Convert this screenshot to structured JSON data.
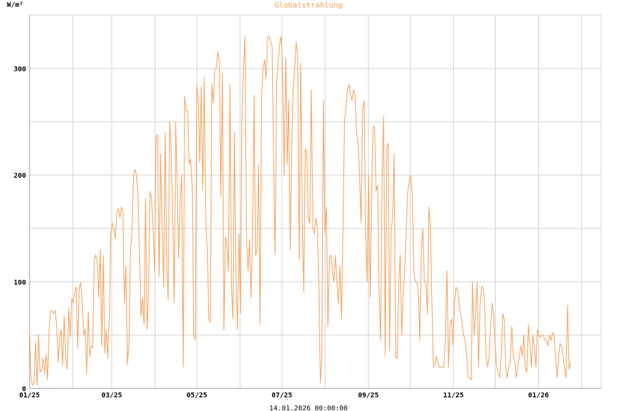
{
  "chart_data": {
    "type": "line",
    "title": "Globalstrahlung",
    "ylabel": "W/m²",
    "xlabel": "14.01.2026 00:00:00",
    "grid": true,
    "ylim": [
      0,
      350
    ],
    "yticks": [
      0,
      100,
      200,
      300
    ],
    "ytick_labels": [
      "0",
      "100",
      "200",
      "300"
    ],
    "xlim": [
      "2025-01-01",
      "2026-02-15"
    ],
    "xticks": [
      "2025-01-01",
      "2025-03-01",
      "2025-05-01",
      "2025-07-01",
      "2025-09-01",
      "2025-11-01",
      "2026-01-01"
    ],
    "xtick_labels": [
      "01/25",
      "03/25",
      "05/25",
      "07/25",
      "09/25",
      "11/25",
      "01/26"
    ],
    "x_minor_grid": [
      "2025-02-01",
      "2025-04-01",
      "2025-06-01",
      "2025-08-01",
      "2025-10-01",
      "2025-12-01",
      "2026-02-01"
    ],
    "series_color": "#f4a460",
    "title_color": "#f0a050",
    "series": [
      {
        "x_start": "2025-01-01",
        "x_end": "2026-01-24",
        "values": [
          57,
          8,
          3,
          5,
          44,
          3,
          50,
          15,
          17,
          28,
          14,
          32,
          8,
          55,
          72,
          73,
          70,
          73,
          60,
          25,
          47,
          55,
          22,
          68,
          30,
          18,
          75,
          48,
          84,
          80,
          90,
          95,
          38,
          94,
          99,
          82,
          50,
          55,
          14,
          72,
          30,
          40,
          38,
          120,
          125,
          118,
          85,
          130,
          40,
          125,
          33,
          55,
          28,
          68,
          145,
          155,
          150,
          140,
          165,
          168,
          160,
          170,
          165,
          80,
          115,
          22,
          42,
          130,
          145,
          200,
          205,
          200,
          180,
          125,
          68,
          85,
          60,
          178,
          55,
          90,
          185,
          178,
          150,
          110,
          236,
          238,
          105,
          220,
          150,
          95,
          240,
          118,
          83,
          250,
          225,
          160,
          80,
          250,
          190,
          122,
          178,
          200,
          20,
          274,
          260,
          260,
          210,
          215,
          188,
          50,
          45,
          285,
          270,
          212,
          283,
          186,
          292,
          155,
          130,
          65,
          62,
          286,
          268,
          300,
          300,
          316,
          305,
          180,
          295,
          55,
          142,
          135,
          110,
          285,
          95,
          65,
          240,
          100,
          55,
          145,
          70,
          260,
          300,
          330,
          140,
          110,
          140,
          85,
          140,
          275,
          125,
          130,
          210,
          60,
          275,
          300,
          308,
          290,
          330,
          330,
          325,
          320,
          210,
          125,
          285,
          305,
          322,
          330,
          300,
          200,
          310,
          210,
          270,
          130,
          225,
          282,
          300,
          325,
          310,
          120,
          305,
          160,
          90,
          225,
          220,
          160,
          155,
          280,
          150,
          145,
          160,
          150,
          100,
          5,
          30,
          270,
          145,
          170,
          58,
          122,
          125,
          110,
          100,
          125,
          100,
          80,
          115,
          65,
          150,
          250,
          265,
          280,
          285,
          275,
          270,
          280,
          275,
          240,
          230,
          200,
          155,
          260,
          270,
          150,
          100,
          200,
          85,
          180,
          245,
          245,
          185,
          190,
          90,
          45,
          200,
          255,
          30,
          225,
          230,
          35,
          150,
          160,
          220,
          30,
          28,
          100,
          125,
          50,
          90,
          110,
          150,
          185,
          195,
          200,
          180,
          110,
          100,
          100,
          90,
          45,
          130,
          150,
          100,
          100,
          70,
          170,
          150,
          80,
          20,
          22,
          30,
          25,
          20,
          20,
          20,
          20,
          50,
          110,
          20,
          60,
          65,
          40,
          80,
          95,
          92,
          80,
          70,
          60,
          50,
          45,
          30,
          10,
          10,
          8,
          100,
          50,
          70,
          100,
          20,
          80,
          95,
          95,
          80,
          30,
          20,
          30,
          60,
          80,
          70,
          40,
          20,
          15,
          10,
          30,
          70,
          65,
          20,
          10,
          20,
          25,
          58,
          30,
          25,
          10,
          20,
          30,
          40,
          30,
          50,
          20,
          15,
          60,
          40,
          20,
          50,
          40,
          20,
          55,
          50,
          48,
          50,
          50,
          45,
          45,
          40,
          50,
          45,
          52,
          50,
          30,
          10,
          30,
          42,
          40,
          30,
          20,
          10,
          78,
          18,
          25
        ]
      }
    ]
  }
}
